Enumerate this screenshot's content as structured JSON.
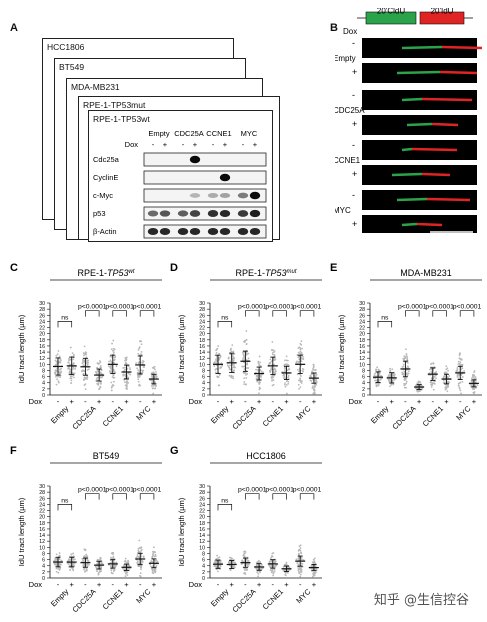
{
  "panel_letters": {
    "a": "A",
    "b": "B",
    "c": "C",
    "d": "D",
    "e": "E",
    "f": "F",
    "g": "G"
  },
  "western": {
    "cell_lines": [
      "HCC1806",
      "BT549",
      "MDA-MB231",
      "RPE-1-TP53mut"
    ],
    "front_title": "RPE-1-TP53wt",
    "columns": [
      "Empty",
      "CDC25A",
      "CCNE1",
      "MYC"
    ],
    "dox_label": "Dox",
    "dox_signs": [
      "-",
      "+",
      "-",
      "+",
      "-",
      "+",
      "-",
      "+"
    ],
    "rows": [
      "Cdc25a",
      "CyclinE",
      "c-Myc",
      "p53",
      "β-Actin"
    ]
  },
  "fibers": {
    "cldu_label": "20'CldU",
    "idu_label": "20'IdU",
    "dox_label": "Dox",
    "groups": [
      "Empty",
      "CDC25A",
      "CCNE1",
      "MYC"
    ],
    "signs": [
      "-",
      "+"
    ],
    "colors": {
      "cldu": "#2aa34a",
      "idu": "#e02424"
    }
  },
  "chart_data": [
    {
      "panel": "C",
      "type": "scatter",
      "title": "RPE-1-TP53wt",
      "ylabel": "IdU tract length (µm)",
      "ylim": [
        0,
        30
      ],
      "yticks": [
        0,
        2,
        4,
        6,
        8,
        10,
        12,
        14,
        16,
        18,
        20,
        22,
        24,
        26,
        28,
        30
      ],
      "categories": [
        "Empty -",
        "Empty +",
        "CDC25A -",
        "CDC25A +",
        "CCNE1 -",
        "CCNE1 +",
        "MYC -",
        "MYC +"
      ],
      "medians": [
        9.3,
        9.5,
        9.2,
        6.5,
        10,
        7.5,
        9.8,
        5.2
      ],
      "xlabels": [
        "Empty",
        "CDC25A",
        "CCNE1",
        "MYC"
      ],
      "dox_label": "Dox",
      "comparisons": [
        {
          "pair": "Empty",
          "label": "ns"
        },
        {
          "pair": "CDC25A",
          "label": "p<0.0001"
        },
        {
          "pair": "CCNE1",
          "label": "p<0.0001"
        },
        {
          "pair": "MYC",
          "label": "p<0.0001"
        }
      ]
    },
    {
      "panel": "D",
      "type": "scatter",
      "title": "RPE-1-TP53mut",
      "ylabel": "IdU tract length (µm)",
      "ylim": [
        0,
        30
      ],
      "yticks": [
        0,
        2,
        4,
        6,
        8,
        10,
        12,
        14,
        16,
        18,
        20,
        22,
        24,
        26,
        28,
        30
      ],
      "categories": [
        "Empty -",
        "Empty +",
        "CDC25A -",
        "CDC25A +",
        "CCNE1 -",
        "CCNE1 +",
        "MYC -",
        "MYC +"
      ],
      "medians": [
        10,
        10.5,
        11,
        7,
        9.5,
        7.2,
        10,
        5.5
      ],
      "xlabels": [
        "Empty",
        "CDC25A",
        "CCNE1",
        "MYC"
      ],
      "dox_label": "Dox",
      "comparisons": [
        {
          "pair": "Empty",
          "label": "ns"
        },
        {
          "pair": "CDC25A",
          "label": "p<0.0001"
        },
        {
          "pair": "CCNE1",
          "label": "p<0.0001"
        },
        {
          "pair": "MYC",
          "label": "p<0.0001"
        }
      ]
    },
    {
      "panel": "E",
      "type": "scatter",
      "title": "MDA-MB231",
      "ylabel": "IdU tract length (µm)",
      "ylim": [
        0,
        30
      ],
      "yticks": [
        0,
        2,
        4,
        6,
        8,
        10,
        12,
        14,
        16,
        18,
        20,
        22,
        24,
        26,
        28,
        30
      ],
      "categories": [
        "Empty -",
        "Empty +",
        "CDC25A -",
        "CDC25A +",
        "CCNE1 -",
        "CCNE1 +",
        "MYC -",
        "MYC +"
      ],
      "medians": [
        5.8,
        5.6,
        8.5,
        2.6,
        6.8,
        5.2,
        7.2,
        3.8
      ],
      "xlabels": [
        "Empty",
        "CDC25A",
        "CCNE1",
        "MYC"
      ],
      "dox_label": "Dox",
      "comparisons": [
        {
          "pair": "Empty",
          "label": "ns"
        },
        {
          "pair": "CDC25A",
          "label": "p<0.0001"
        },
        {
          "pair": "CCNE1",
          "label": "p<0.0001"
        },
        {
          "pair": "MYC",
          "label": "p<0.0001"
        }
      ]
    },
    {
      "panel": "F",
      "type": "scatter",
      "title": "BT549",
      "ylabel": "IdU tract length (µm)",
      "ylim": [
        0,
        30
      ],
      "yticks": [
        0,
        2,
        4,
        6,
        8,
        10,
        12,
        14,
        16,
        18,
        20,
        22,
        24,
        26,
        28,
        30
      ],
      "categories": [
        "Empty -",
        "Empty +",
        "CDC25A -",
        "CDC25A +",
        "CCNE1 -",
        "CCNE1 +",
        "MYC -",
        "MYC +"
      ],
      "medians": [
        5.2,
        5.2,
        5,
        4.2,
        4.6,
        3.5,
        6.2,
        4.8
      ],
      "xlabels": [
        "Empty",
        "CDC25A",
        "CCNE1",
        "MYC"
      ],
      "dox_label": "Dox",
      "comparisons": [
        {
          "pair": "Empty",
          "label": "ns"
        },
        {
          "pair": "CDC25A",
          "label": "p<0.0001"
        },
        {
          "pair": "CCNE1",
          "label": "p<0.0001"
        },
        {
          "pair": "MYC",
          "label": "p<0.0001"
        }
      ]
    },
    {
      "panel": "G",
      "type": "scatter",
      "title": "HCC1806",
      "ylabel": "IdU tract length (µm)",
      "ylim": [
        0,
        30
      ],
      "yticks": [
        0,
        2,
        4,
        6,
        8,
        10,
        12,
        14,
        16,
        18,
        20,
        22,
        24,
        26,
        28,
        30
      ],
      "categories": [
        "Empty -",
        "Empty +",
        "CDC25A -",
        "CDC25A +",
        "CCNE1 -",
        "CCNE1 +",
        "MYC -",
        "MYC +"
      ],
      "medians": [
        4.5,
        4.4,
        5,
        3.6,
        4.6,
        3,
        5.5,
        3.4
      ],
      "xlabels": [
        "Empty",
        "CDC25A",
        "CCNE1",
        "MYC"
      ],
      "dox_label": "Dox",
      "comparisons": [
        {
          "pair": "Empty",
          "label": "ns"
        },
        {
          "pair": "CDC25A",
          "label": "p<0.0001"
        },
        {
          "pair": "CCNE1",
          "label": "p<0.0001"
        },
        {
          "pair": "MYC",
          "label": "p<0.0001"
        }
      ]
    }
  ],
  "watermark": "知乎 @生信控谷"
}
